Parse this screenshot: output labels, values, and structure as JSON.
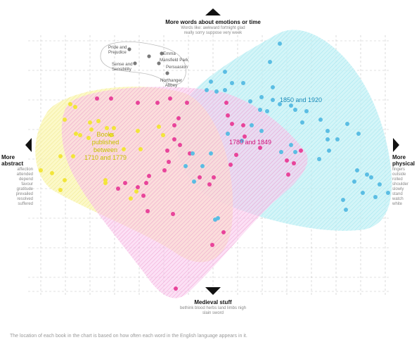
{
  "axes": {
    "top": {
      "title": "More words about emotions or time",
      "words": "Words like: awkward fortnight glad\nreally sorry suppose very week"
    },
    "bottom": {
      "title": "Medieval stuff",
      "words": "bethink blood herbs land limbs nigh\nslain sword"
    },
    "left": {
      "title": "More\nabstract",
      "words": "affection\nattended\ndepend\nfavour\ngratitude\nprevailed\nresolved\nsuffered"
    },
    "right": {
      "title": "More\nphysical",
      "words": "fingers\noutside\nrolled\nshoulder\nslowly\nstand\nwatch\nwhite"
    }
  },
  "eras": [
    {
      "label": "Books\npublished\nbetween\n1710 and 1779",
      "color": "#c9c000",
      "fill": "#fbf7b8",
      "dot": "#f2e53a"
    },
    {
      "label": "1780 and 1849",
      "color": "#d0107a",
      "fill": "#f9c8ec",
      "dot": "#e8449a"
    },
    {
      "label": "1850 and 1920",
      "color": "#1a8ab8",
      "fill": "#c6f2f6",
      "dot": "#5bbde3"
    }
  ],
  "books": [
    {
      "name": "Pride and\nPrejudice"
    },
    {
      "name": "Emma"
    },
    {
      "name": "Mansfield Park"
    },
    {
      "name": "Sense and\nSensibility"
    },
    {
      "name": "Persuasion"
    },
    {
      "name": "Northanger\nAbbey"
    }
  ],
  "caption": "The location of each book in the chart is based on how often each word in the English language appears in it.",
  "colors": {
    "grid": "#c4c4c4",
    "arrow": "#111111",
    "austen_dot": "#7a7a7a",
    "austen_ring": "#bbbbbb"
  },
  "icons": [
    "arrow-up-icon",
    "arrow-down-icon",
    "arrow-left-icon",
    "arrow-right-icon"
  ]
}
